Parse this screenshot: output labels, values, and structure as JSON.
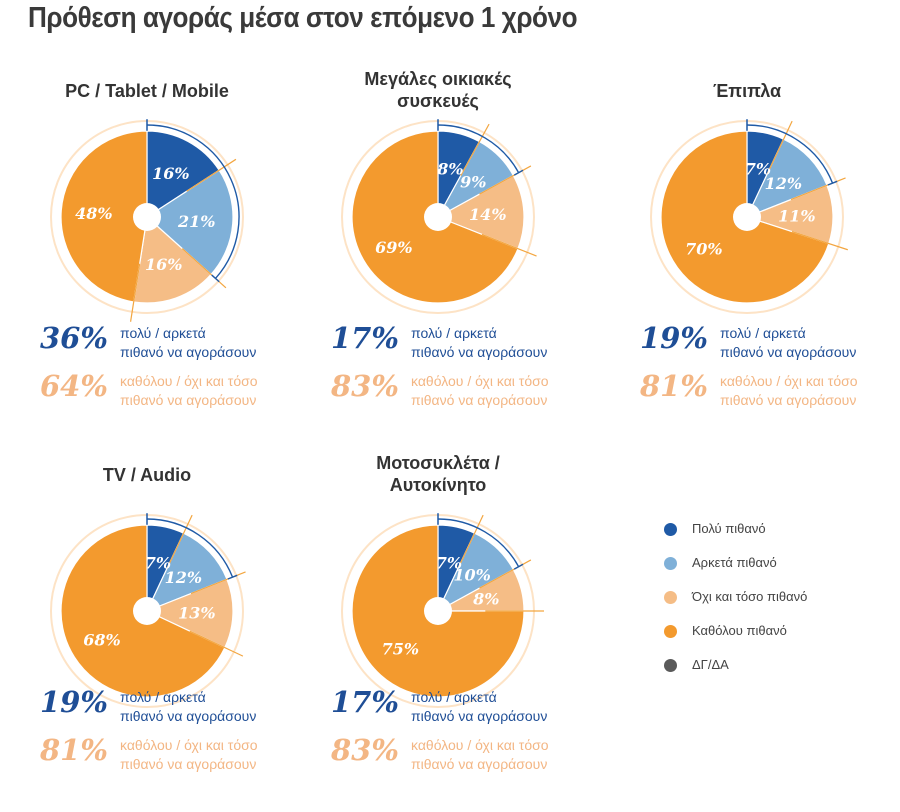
{
  "title": "Πρόθεση αγοράς μέσα στον επόμενο 1 χρόνο",
  "colors": {
    "very_likely": "#1f5aa6",
    "fairly_likely": "#7fb0d8",
    "not_so_likely": "#f5bd86",
    "not_at_all": "#f39a2e",
    "dk_na": "#5a5a5a"
  },
  "legend": [
    {
      "label": "Πολύ πιθανό",
      "color": "#1f5aa6"
    },
    {
      "label": "Αρκετά πιθανό",
      "color": "#7fb0d8"
    },
    {
      "label": "Όχι και τόσο πιθανό",
      "color": "#f5bd86"
    },
    {
      "label": "Καθόλου πιθανό",
      "color": "#f39a2e"
    },
    {
      "label": "ΔΓ/ΔΑ",
      "color": "#5a5a5a"
    }
  ],
  "chart_data": [
    {
      "type": "pie",
      "title": "PC / Tablet / Mobile",
      "slices": [
        {
          "name": "Πολύ πιθανό",
          "value": 16,
          "label": "16%"
        },
        {
          "name": "Αρκετά πιθανό",
          "value": 21,
          "label": "21%"
        },
        {
          "name": "Όχι και τόσο πιθανό",
          "value": 16,
          "label": "16%"
        },
        {
          "name": "Καθόλου πιθανό",
          "value": 48,
          "label": "48%"
        }
      ],
      "summary_likely": {
        "value": "36%",
        "text1": "πολύ / αρκετά",
        "text2": "πιθανό να αγοράσουν"
      },
      "summary_unlikely": {
        "value": "64%",
        "text1": "καθόλου / όχι και τόσο",
        "text2": "πιθανό να αγοράσουν"
      }
    },
    {
      "type": "pie",
      "title": "Μεγάλες οικιακές συσκευές",
      "slices": [
        {
          "name": "Πολύ πιθανό",
          "value": 8,
          "label": "8%"
        },
        {
          "name": "Αρκετά πιθανό",
          "value": 9,
          "label": "9%"
        },
        {
          "name": "Όχι και τόσο πιθανό",
          "value": 14,
          "label": "14%"
        },
        {
          "name": "Καθόλου πιθανό",
          "value": 69,
          "label": "69%"
        }
      ],
      "summary_likely": {
        "value": "17%",
        "text1": "πολύ / αρκετά",
        "text2": "πιθανό να αγοράσουν"
      },
      "summary_unlikely": {
        "value": "83%",
        "text1": "καθόλου / όχι και τόσο",
        "text2": "πιθανό να αγοράσουν"
      }
    },
    {
      "type": "pie",
      "title": "Έπιπλα",
      "slices": [
        {
          "name": "Πολύ πιθανό",
          "value": 7,
          "label": "7%"
        },
        {
          "name": "Αρκετά πιθανό",
          "value": 12,
          "label": "12%"
        },
        {
          "name": "Όχι και τόσο πιθανό",
          "value": 11,
          "label": "11%"
        },
        {
          "name": "Καθόλου πιθανό",
          "value": 70,
          "label": "70%"
        }
      ],
      "summary_likely": {
        "value": "19%",
        "text1": "πολύ / αρκετά",
        "text2": "πιθανό να αγοράσουν"
      },
      "summary_unlikely": {
        "value": "81%",
        "text1": "καθόλου / όχι και τόσο",
        "text2": "πιθανό να αγοράσουν"
      }
    },
    {
      "type": "pie",
      "title": "TV / Audio",
      "slices": [
        {
          "name": "Πολύ πιθανό",
          "value": 7,
          "label": "7%"
        },
        {
          "name": "Αρκετά πιθανό",
          "value": 12,
          "label": "12%"
        },
        {
          "name": "Όχι και τόσο πιθανό",
          "value": 13,
          "label": "13%"
        },
        {
          "name": "Καθόλου πιθανό",
          "value": 68,
          "label": "68%"
        }
      ],
      "summary_likely": {
        "value": "19%",
        "text1": "πολύ / αρκετά",
        "text2": "πιθανό να αγοράσουν"
      },
      "summary_unlikely": {
        "value": "81%",
        "text1": "καθόλου / όχι και τόσο",
        "text2": "πιθανό να αγοράσουν"
      }
    },
    {
      "type": "pie",
      "title": "Μοτοσυκλέτα / Αυτοκίνητο",
      "slices": [
        {
          "name": "Πολύ πιθανό",
          "value": 7,
          "label": "7%"
        },
        {
          "name": "Αρκετά πιθανό",
          "value": 10,
          "label": "10%"
        },
        {
          "name": "Όχι και τόσο πιθανό",
          "value": 8,
          "label": "8%"
        },
        {
          "name": "Καθόλου πιθανό",
          "value": 75,
          "label": "75%"
        }
      ],
      "summary_likely": {
        "value": "17%",
        "text1": "πολύ / αρκετά",
        "text2": "πιθανό να αγοράσουν"
      },
      "summary_unlikely": {
        "value": "83%",
        "text1": "καθόλου / όχι και τόσο",
        "text2": "πιθανό να αγοράσουν"
      }
    }
  ]
}
